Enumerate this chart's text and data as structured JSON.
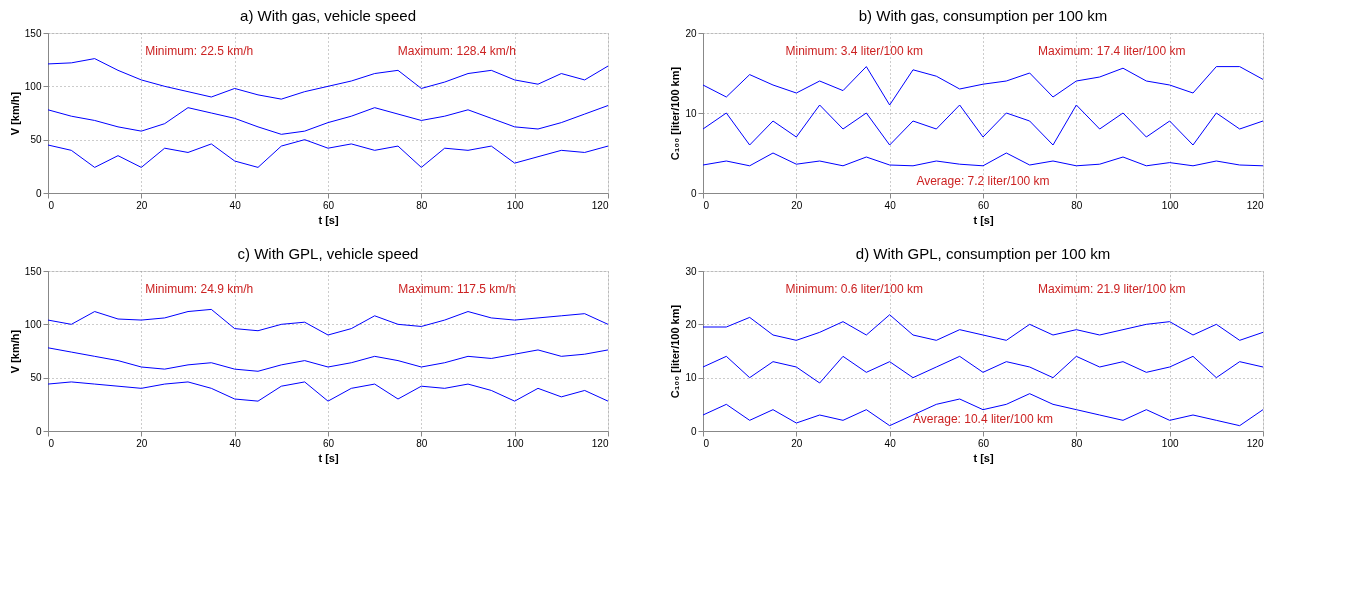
{
  "chart_data": [
    {
      "type": "line",
      "title": "a) With gas, vehicle speed",
      "xlabel": "t [s]",
      "ylabel": "V [km/h]",
      "xlim": [
        0,
        120
      ],
      "xticks": [
        0,
        20,
        40,
        60,
        80,
        100,
        120
      ],
      "ylim": [
        0,
        150
      ],
      "yticks": [
        0,
        50,
        100,
        150
      ],
      "grid": true,
      "annotations": [
        "Minimum: 22.5 km/h",
        "Maximum: 128.4 km/h"
      ],
      "x": [
        0,
        5,
        10,
        15,
        20,
        25,
        30,
        35,
        40,
        45,
        50,
        55,
        60,
        65,
        70,
        75,
        80,
        85,
        90,
        95,
        100,
        105,
        110,
        115,
        120
      ],
      "series": [
        {
          "color": "#0000ff",
          "values": [
            121,
            122,
            126,
            115,
            106,
            100,
            95,
            90,
            98,
            92,
            88,
            95,
            100,
            105,
            112,
            115,
            98,
            104,
            112,
            115,
            106,
            102,
            112,
            106,
            119
          ]
        },
        {
          "color": "#0000ff",
          "values": [
            78,
            72,
            68,
            62,
            58,
            65,
            80,
            75,
            70,
            62,
            55,
            58,
            66,
            72,
            80,
            74,
            68,
            72,
            78,
            70,
            62,
            60,
            66,
            74,
            82
          ]
        },
        {
          "color": "#0000ff",
          "values": [
            45,
            40,
            24,
            35,
            24,
            42,
            38,
            46,
            30,
            24,
            44,
            50,
            42,
            46,
            40,
            44,
            24,
            42,
            40,
            44,
            28,
            34,
            40,
            38,
            44
          ]
        }
      ]
    },
    {
      "type": "line",
      "title": "b) With gas, consumption per 100 km",
      "xlabel": "t [s]",
      "ylabel": "C₁₀₀ [liter/100 km]",
      "xlim": [
        0,
        120
      ],
      "xticks": [
        0,
        20,
        40,
        60,
        80,
        100,
        120
      ],
      "ylim": [
        0,
        20
      ],
      "yticks": [
        0,
        10,
        20
      ],
      "grid": true,
      "annotations": [
        "Minimum: 3.4 liter/100 km",
        "Maximum: 17.4 liter/100 km",
        "Average: 7.2 liter/100 km"
      ],
      "x": [
        0,
        5,
        10,
        15,
        20,
        25,
        30,
        35,
        40,
        45,
        50,
        55,
        60,
        65,
        70,
        75,
        80,
        85,
        90,
        95,
        100,
        105,
        110,
        115,
        120
      ],
      "series": [
        {
          "color": "#0000ff",
          "values": [
            13.5,
            12,
            14.8,
            13.5,
            12.5,
            14,
            12.8,
            15.8,
            11,
            15.4,
            14.6,
            13,
            13.6,
            14,
            15,
            12,
            14,
            14.5,
            15.6,
            14,
            13.5,
            12.5,
            15.8,
            15.8,
            14.2
          ]
        },
        {
          "color": "#0000ff",
          "values": [
            8,
            10,
            6,
            9,
            7,
            11,
            8,
            10,
            6,
            9,
            8,
            11,
            7,
            10,
            9,
            6,
            11,
            8,
            10,
            7,
            9,
            6,
            10,
            8,
            9
          ]
        },
        {
          "color": "#0000ff",
          "values": [
            3.5,
            4,
            3.4,
            5,
            3.6,
            4,
            3.4,
            4.5,
            3.5,
            3.4,
            4,
            3.6,
            3.4,
            5,
            3.5,
            4,
            3.4,
            3.6,
            4.5,
            3.4,
            3.8,
            3.4,
            4,
            3.5,
            3.4
          ]
        }
      ]
    },
    {
      "type": "line",
      "title": "c) With GPL, vehicle speed",
      "xlabel": "t [s]",
      "ylabel": "V [km/h]",
      "xlim": [
        0,
        120
      ],
      "xticks": [
        0,
        20,
        40,
        60,
        80,
        100,
        120
      ],
      "ylim": [
        0,
        150
      ],
      "yticks": [
        0,
        50,
        100,
        150
      ],
      "grid": true,
      "annotations": [
        "Minimum: 24.9 km/h",
        "Maximum: 117.5 km/h"
      ],
      "x": [
        0,
        5,
        10,
        15,
        20,
        25,
        30,
        35,
        40,
        45,
        50,
        55,
        60,
        65,
        70,
        75,
        80,
        85,
        90,
        95,
        100,
        105,
        110,
        115,
        120
      ],
      "series": [
        {
          "color": "#0000ff",
          "values": [
            104,
            100,
            112,
            105,
            104,
            106,
            112,
            114,
            96,
            94,
            100,
            102,
            90,
            96,
            108,
            100,
            98,
            104,
            112,
            106,
            104,
            106,
            108,
            110,
            100
          ]
        },
        {
          "color": "#0000ff",
          "values": [
            78,
            74,
            70,
            66,
            60,
            58,
            62,
            64,
            58,
            56,
            62,
            66,
            60,
            64,
            70,
            66,
            60,
            64,
            70,
            68,
            72,
            76,
            70,
            72,
            76
          ]
        },
        {
          "color": "#0000ff",
          "values": [
            44,
            46,
            44,
            42,
            40,
            44,
            46,
            40,
            30,
            28,
            42,
            46,
            28,
            40,
            44,
            30,
            42,
            40,
            44,
            38,
            28,
            40,
            32,
            38,
            28
          ]
        }
      ]
    },
    {
      "type": "line",
      "title": "d) With GPL, consumption per 100 km",
      "xlabel": "t [s]",
      "ylabel": "C₁₀₀ [liter/100 km]",
      "xlim": [
        0,
        120
      ],
      "xticks": [
        0,
        20,
        40,
        60,
        80,
        100,
        120
      ],
      "ylim": [
        0,
        30
      ],
      "yticks": [
        0,
        10,
        20,
        30
      ],
      "grid": true,
      "annotations": [
        "Minimum: 0.6 liter/100 km",
        "Maximum: 21.9 liter/100 km",
        "Average: 10.4 liter/100 km"
      ],
      "x": [
        0,
        5,
        10,
        15,
        20,
        25,
        30,
        35,
        40,
        45,
        50,
        55,
        60,
        65,
        70,
        75,
        80,
        85,
        90,
        95,
        100,
        105,
        110,
        115,
        120
      ],
      "series": [
        {
          "color": "#0000ff",
          "values": [
            19.5,
            19.5,
            21.3,
            18,
            17,
            18.5,
            20.5,
            18,
            21.8,
            18,
            17,
            19,
            18,
            17,
            20,
            18,
            19,
            18,
            19,
            20,
            20.5,
            18,
            20,
            17,
            18.5
          ]
        },
        {
          "color": "#0000ff",
          "values": [
            12,
            14,
            10,
            13,
            12,
            9,
            14,
            11,
            13,
            10,
            12,
            14,
            11,
            13,
            12,
            10,
            14,
            12,
            13,
            11,
            12,
            14,
            10,
            13,
            12
          ]
        },
        {
          "color": "#0000ff",
          "values": [
            3,
            5,
            2,
            4,
            1.5,
            3,
            2,
            4,
            1,
            3,
            5,
            6,
            4,
            5,
            7,
            5,
            4,
            3,
            2,
            4,
            2,
            3,
            2,
            1,
            4
          ]
        }
      ]
    }
  ]
}
